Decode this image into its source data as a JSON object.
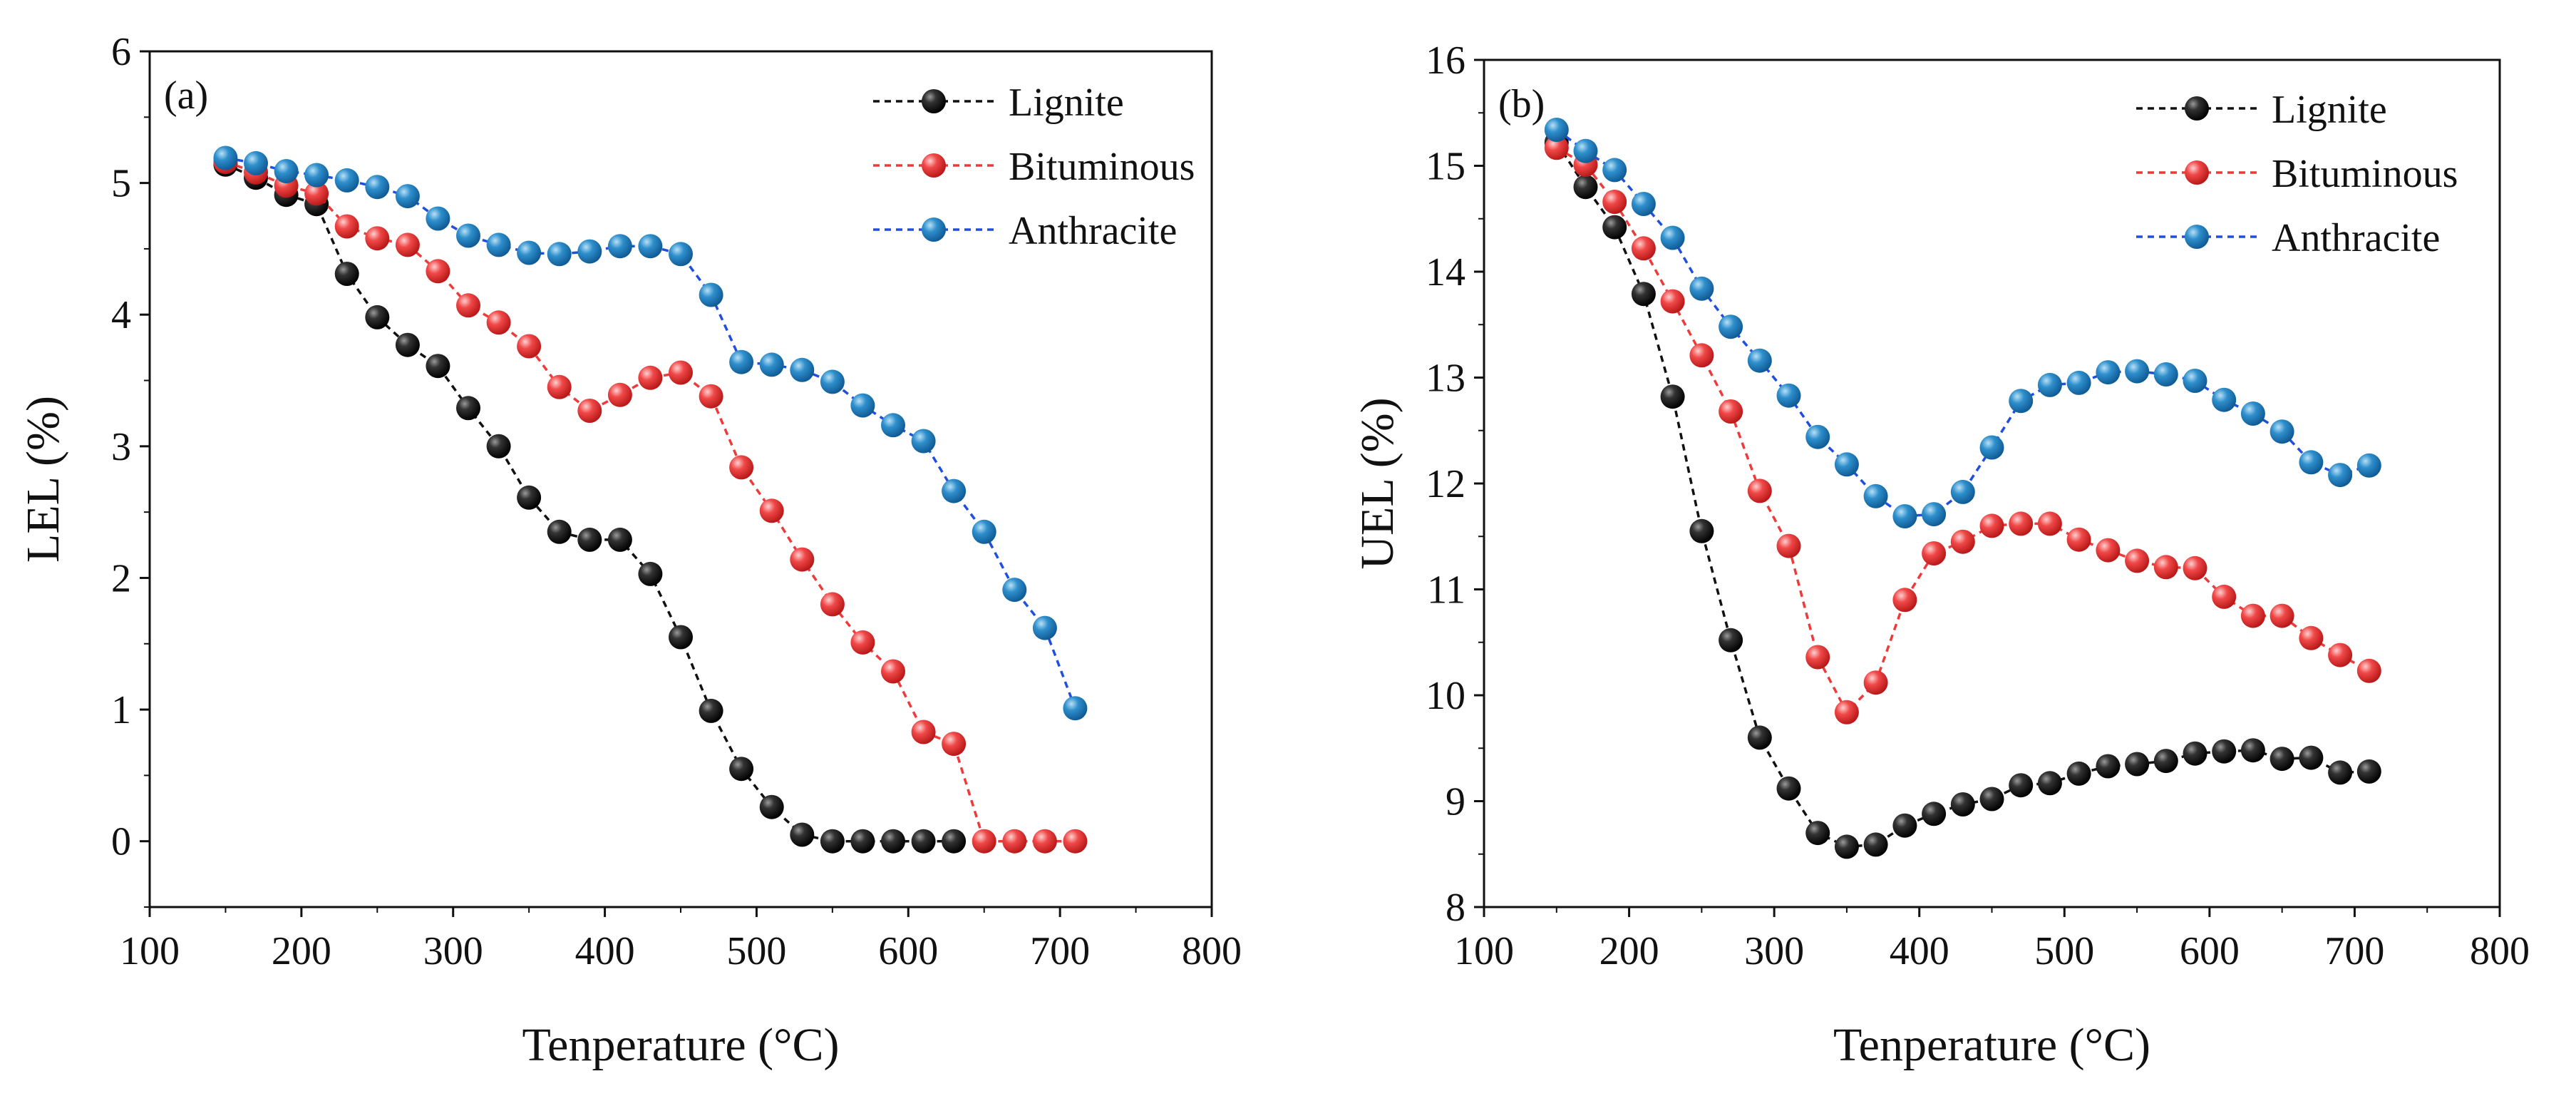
{
  "chart_data": [
    {
      "type": "line",
      "panel_label": "(a)",
      "xlabel": "Tenperature (°C)",
      "ylabel": "LEL (%)",
      "xlim": [
        100,
        800
      ],
      "ylim": [
        -0.5,
        6
      ],
      "xticks": [
        100,
        200,
        300,
        400,
        500,
        600,
        700,
        800
      ],
      "yticks": [
        0,
        1,
        2,
        3,
        4,
        5,
        6
      ],
      "x": [
        150,
        170,
        190,
        210,
        230,
        250,
        270,
        290,
        310,
        330,
        350,
        370,
        390,
        410,
        430,
        450,
        470,
        490,
        510,
        530,
        550,
        570,
        590,
        610,
        630,
        650,
        670,
        690,
        710
      ],
      "legend_position": "top-right",
      "series": [
        {
          "name": "Lignite",
          "color": "#111111",
          "x": [
            150,
            170,
            190,
            210,
            230,
            250,
            270,
            290,
            310,
            330,
            350,
            370,
            390,
            410,
            430,
            450,
            470,
            490,
            510,
            530,
            550,
            570,
            590,
            610,
            630
          ],
          "values": [
            5.14,
            5.04,
            4.91,
            4.84,
            4.31,
            3.98,
            3.77,
            3.61,
            3.29,
            3.0,
            2.61,
            2.35,
            2.29,
            2.29,
            2.03,
            1.55,
            0.99,
            0.55,
            0.26,
            0.05,
            0,
            0,
            0,
            0,
            0
          ]
        },
        {
          "name": "Bituminous",
          "color": "#ee3a3a",
          "x": [
            150,
            170,
            190,
            210,
            230,
            250,
            270,
            290,
            310,
            330,
            350,
            370,
            390,
            410,
            430,
            450,
            470,
            490,
            510,
            530,
            550,
            570,
            590,
            610,
            630,
            650,
            670,
            690,
            710
          ],
          "values": [
            5.16,
            5.08,
            4.98,
            4.92,
            4.67,
            4.58,
            4.53,
            4.33,
            4.07,
            3.94,
            3.76,
            3.45,
            3.27,
            3.39,
            3.52,
            3.56,
            3.38,
            2.84,
            2.51,
            2.14,
            1.8,
            1.51,
            1.29,
            0.83,
            0.74,
            0,
            0,
            0,
            0
          ]
        },
        {
          "name": "Anthracite",
          "color": "#1f7fbf",
          "line_color": "#1f4ee0",
          "x": [
            150,
            170,
            190,
            210,
            230,
            250,
            270,
            290,
            310,
            330,
            350,
            370,
            390,
            410,
            430,
            450,
            470,
            490,
            510,
            530,
            550,
            570,
            590,
            610,
            630,
            650,
            670,
            690,
            710
          ],
          "values": [
            5.19,
            5.15,
            5.09,
            5.06,
            5.02,
            4.97,
            4.9,
            4.73,
            4.6,
            4.53,
            4.47,
            4.46,
            4.48,
            4.52,
            4.52,
            4.46,
            4.15,
            3.64,
            3.62,
            3.58,
            3.49,
            3.31,
            3.16,
            3.04,
            2.66,
            2.35,
            1.91,
            1.62,
            1.01
          ]
        }
      ]
    },
    {
      "type": "line",
      "panel_label": "(b)",
      "xlabel": "Tenperature (°C)",
      "ylabel": "UEL (%)",
      "xlim": [
        100,
        800
      ],
      "ylim": [
        8,
        16
      ],
      "xticks": [
        100,
        200,
        300,
        400,
        500,
        600,
        700,
        800
      ],
      "yticks": [
        8,
        9,
        10,
        11,
        12,
        13,
        14,
        15,
        16
      ],
      "x": [
        150,
        170,
        190,
        210,
        230,
        250,
        270,
        290,
        310,
        330,
        350,
        370,
        390,
        410,
        430,
        450,
        470,
        490,
        510,
        530,
        550,
        570,
        590,
        610,
        630,
        650,
        670,
        690,
        710
      ],
      "legend_position": "top-right",
      "series": [
        {
          "name": "Lignite",
          "color": "#111111",
          "x": [
            150,
            170,
            190,
            210,
            230,
            250,
            270,
            290,
            310,
            330,
            350,
            370,
            390,
            410,
            430,
            450,
            470,
            490,
            510,
            530,
            550,
            570,
            590,
            610,
            630,
            650,
            670,
            690,
            710
          ],
          "values": [
            15.22,
            14.8,
            14.42,
            13.79,
            12.82,
            11.55,
            10.52,
            9.6,
            9.12,
            8.7,
            8.57,
            8.59,
            8.77,
            8.88,
            8.97,
            9.02,
            9.15,
            9.17,
            9.26,
            9.33,
            9.35,
            9.38,
            9.45,
            9.47,
            9.48,
            9.4,
            9.41,
            9.27,
            9.28
          ]
        },
        {
          "name": "Bituminous",
          "color": "#ee3a3a",
          "x": [
            150,
            170,
            190,
            210,
            230,
            250,
            270,
            290,
            310,
            330,
            350,
            370,
            390,
            410,
            430,
            450,
            470,
            490,
            510,
            530,
            550,
            570,
            590,
            610,
            630,
            650,
            670,
            690,
            710
          ],
          "values": [
            15.17,
            15.01,
            14.66,
            14.22,
            13.72,
            13.21,
            12.68,
            11.93,
            11.41,
            10.36,
            9.84,
            10.12,
            10.9,
            11.34,
            11.45,
            11.6,
            11.62,
            11.62,
            11.47,
            11.37,
            11.27,
            11.21,
            11.2,
            10.93,
            10.75,
            10.75,
            10.54,
            10.38,
            10.23
          ]
        },
        {
          "name": "Anthracite",
          "color": "#1f7fbf",
          "line_color": "#1f4ee0",
          "x": [
            150,
            170,
            190,
            210,
            230,
            250,
            270,
            290,
            310,
            330,
            350,
            370,
            390,
            410,
            430,
            450,
            470,
            490,
            510,
            530,
            550,
            570,
            590,
            610,
            630,
            650,
            670,
            690,
            710
          ],
          "values": [
            15.34,
            15.14,
            14.96,
            14.64,
            14.32,
            13.84,
            13.48,
            13.16,
            12.83,
            12.44,
            12.18,
            11.88,
            11.69,
            11.71,
            11.92,
            12.34,
            12.78,
            12.93,
            12.95,
            13.05,
            13.06,
            13.03,
            12.97,
            12.79,
            12.66,
            12.49,
            12.2,
            12.08,
            12.17
          ]
        }
      ]
    }
  ]
}
